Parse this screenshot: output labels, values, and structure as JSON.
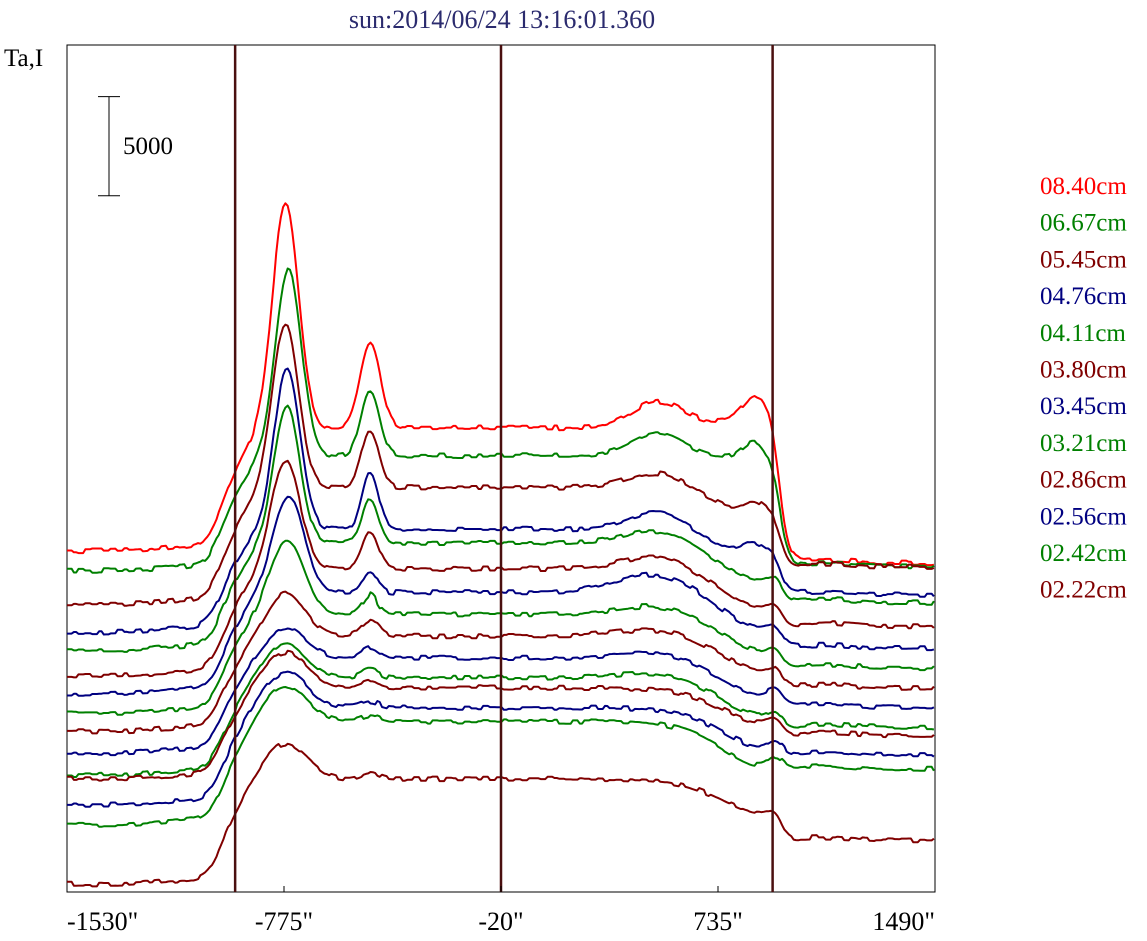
{
  "chart_data": {
    "type": "line",
    "title": "sun:2014/06/24 13:16:01.360",
    "ylabel": "Ta,I",
    "scale_bar": {
      "label": "5000",
      "value": 5000
    },
    "xlim": [
      -1530,
      1490
    ],
    "xticks": [
      {
        "value": -1530,
        "label": "-1530\""
      },
      {
        "value": -775,
        "label": "-775\""
      },
      {
        "value": -20,
        "label": "-20\""
      },
      {
        "value": 735,
        "label": "735\""
      },
      {
        "value": 1490,
        "label": "1490\""
      }
    ],
    "vertical_lines": [
      -945,
      -20,
      925
    ],
    "colors": {
      "red": "#ff0000",
      "green": "#008000",
      "maroon": "#800000",
      "navy": "#000080",
      "vline": "#4a0f0f"
    },
    "legend_position": "right",
    "legend": [
      {
        "label": "08.40cm",
        "color": "#ff0000"
      },
      {
        "label": "06.67cm",
        "color": "#008000"
      },
      {
        "label": "05.45cm",
        "color": "#800000"
      },
      {
        "label": "04.76cm",
        "color": "#000080"
      },
      {
        "label": "04.11cm",
        "color": "#008000"
      },
      {
        "label": "03.80cm",
        "color": "#800000"
      },
      {
        "label": "03.45cm",
        "color": "#000080"
      },
      {
        "label": "03.21cm",
        "color": "#008000"
      },
      {
        "label": "02.86cm",
        "color": "#800000"
      },
      {
        "label": "02.56cm",
        "color": "#000080"
      },
      {
        "label": "02.42cm",
        "color": "#008000"
      },
      {
        "label": "02.22cm",
        "color": "#800000"
      }
    ],
    "series": [
      {
        "color": "#ff0000",
        "baseline": 17000,
        "disk": 6200,
        "limb_e": 3600,
        "limb_w": 6800,
        "peaks": [
          [
            -770,
            11300,
            45
          ],
          [
            -475,
            4300,
            35
          ],
          [
            525,
            1300,
            90
          ],
          [
            870,
            1200,
            45
          ]
        ]
      },
      {
        "color": "#008000",
        "baseline": 16000,
        "disk": 5800,
        "limb_e": 3500,
        "limb_w": 5600,
        "peaks": [
          [
            -760,
            9400,
            45
          ],
          [
            -475,
            3300,
            32
          ],
          [
            525,
            1100,
            90
          ],
          [
            860,
            900,
            40
          ]
        ]
      },
      {
        "color": "#800000",
        "baseline": 14300,
        "disk": 5900,
        "limb_e": 3400,
        "limb_w": 4000,
        "peaks": [
          [
            -770,
            8300,
            45
          ],
          [
            -475,
            2900,
            30
          ],
          [
            525,
            800,
            100
          ],
          [
            860,
            800,
            40
          ]
        ]
      },
      {
        "color": "#000080",
        "baseline": 12900,
        "disk": 5200,
        "limb_e": 3300,
        "limb_w": 3300,
        "peaks": [
          [
            -765,
            8100,
            45
          ],
          [
            -475,
            2900,
            28
          ],
          [
            525,
            900,
            100
          ],
          [
            860,
            800,
            40
          ]
        ]
      },
      {
        "color": "#008000",
        "baseline": 12000,
        "disk": 5400,
        "limb_e": 3200,
        "limb_w": 3000,
        "peaks": [
          [
            -765,
            6900,
            45
          ],
          [
            -475,
            2200,
            28
          ],
          [
            525,
            700,
            110
          ]
        ]
      },
      {
        "color": "#800000",
        "baseline": 10700,
        "disk": 5400,
        "limb_e": 3100,
        "limb_w": 2900,
        "peaks": [
          [
            -770,
            5500,
            50
          ],
          [
            -475,
            1800,
            28
          ],
          [
            525,
            700,
            120
          ]
        ]
      },
      {
        "color": "#000080",
        "baseline": 9800,
        "disk": 5100,
        "limb_e": 3000,
        "limb_w": 2800,
        "peaks": [
          [
            -760,
            4800,
            55
          ],
          [
            -475,
            1100,
            25
          ],
          [
            525,
            1000,
            140
          ]
        ]
      },
      {
        "color": "#008000",
        "baseline": 8800,
        "disk": 5000,
        "limb_e": 3000,
        "limb_w": 2700,
        "peaks": [
          [
            -765,
            3800,
            60
          ],
          [
            -475,
            1000,
            25
          ],
          [
            525,
            500,
            130
          ]
        ]
      },
      {
        "color": "#800000",
        "baseline": 7900,
        "disk": 4800,
        "limb_e": 3000,
        "limb_w": 2600,
        "peaks": [
          [
            -770,
            2200,
            65
          ],
          [
            -475,
            800,
            30
          ],
          [
            525,
            400,
            140
          ]
        ]
      },
      {
        "color": "#000080",
        "baseline": 6800,
        "disk": 4800,
        "limb_e": 3000,
        "limb_w": 2500,
        "peaks": [
          [
            -770,
            1500,
            70
          ],
          [
            -475,
            500,
            30
          ],
          [
            525,
            300,
            140
          ]
        ]
      },
      {
        "color": "#008000",
        "baseline": 5700,
        "disk": 4900,
        "limb_e": 3000,
        "limb_w": 2500,
        "peaks": [
          [
            -770,
            1800,
            70
          ],
          [
            -475,
            400,
            30
          ],
          [
            525,
            300,
            140
          ]
        ]
      },
      {
        "color": "#800000",
        "baseline": 5500,
        "disk": 4600,
        "limb_e": 3000,
        "limb_w": 2400,
        "peaks": [
          [
            -770,
            1800,
            75
          ],
          [
            -475,
            300,
            30
          ]
        ]
      },
      {
        "color": "#000080",
        "baseline": 4200,
        "disk": 4900,
        "limb_e": 3000,
        "limb_w": 2400,
        "peaks": [
          [
            -770,
            1800,
            75
          ],
          [
            -475,
            300,
            30
          ]
        ]
      },
      {
        "color": "#008000",
        "baseline": 3200,
        "disk": 5200,
        "limb_e": 3000,
        "limb_w": 2400,
        "peaks": [
          [
            -770,
            1800,
            75
          ],
          [
            -475,
            300,
            30
          ]
        ]
      },
      {
        "color": "#800000",
        "baseline": 200,
        "disk": 5300,
        "limb_e": 3200,
        "limb_w": 3100,
        "peaks": [
          [
            -770,
            1800,
            75
          ],
          [
            -475,
            300,
            30
          ]
        ]
      }
    ],
    "ylim": [
      -200,
      42500
    ]
  }
}
